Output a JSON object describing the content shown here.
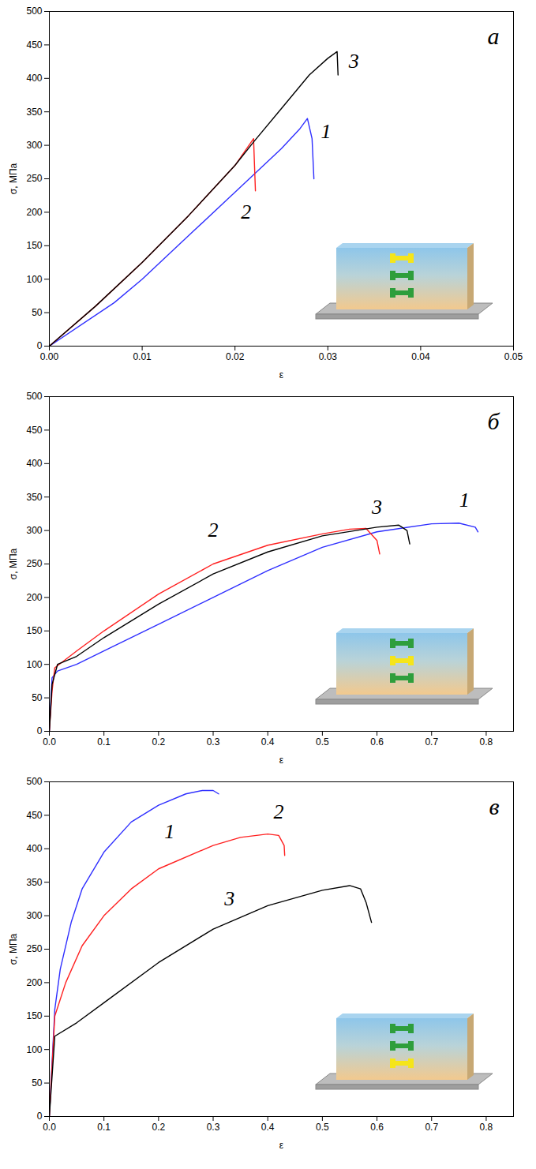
{
  "chart_data": [
    {
      "type": "line",
      "panel_label": "а",
      "x_label": "ε",
      "y_label": "σ, МПа",
      "xlim": [
        0,
        0.05
      ],
      "xticks": [
        {
          "value": 0,
          "label": "0.00"
        },
        {
          "value": 0.01,
          "label": "0.01"
        },
        {
          "value": 0.02,
          "label": "0.02"
        },
        {
          "value": 0.03,
          "label": "0.03"
        },
        {
          "value": 0.04,
          "label": "0.04"
        },
        {
          "value": 0.05,
          "label": "0.05"
        }
      ],
      "ylim": [
        0,
        500
      ],
      "yticks": [
        0,
        50,
        100,
        150,
        200,
        250,
        300,
        350,
        400,
        450,
        500
      ],
      "series": [
        {
          "name": "1",
          "color": "#2f2fff",
          "x": [
            0,
            0.007,
            0.01,
            0.015,
            0.02,
            0.025,
            0.027,
            0.0278,
            0.0283,
            0.0285
          ],
          "values": [
            0,
            65,
            100,
            165,
            230,
            295,
            325,
            340,
            310,
            250
          ]
        },
        {
          "name": "2",
          "color": "#ff2020",
          "x": [
            0,
            0.005,
            0.01,
            0.015,
            0.02,
            0.022,
            0.0221,
            0.0222
          ],
          "values": [
            0,
            60,
            125,
            195,
            270,
            310,
            270,
            232
          ]
        },
        {
          "name": "3",
          "color": "#000000",
          "x": [
            0,
            0.005,
            0.01,
            0.015,
            0.02,
            0.022,
            0.025,
            0.028,
            0.03,
            0.031,
            0.0311
          ],
          "values": [
            0,
            60,
            125,
            195,
            270,
            305,
            355,
            405,
            430,
            440,
            405
          ]
        }
      ],
      "annotations": [
        {
          "text": "1",
          "x": 0.0298,
          "y": 320
        },
        {
          "text": "2",
          "x": 0.0212,
          "y": 200
        },
        {
          "text": "3",
          "x": 0.0328,
          "y": 425
        }
      ]
    },
    {
      "type": "line",
      "panel_label": "б",
      "x_label": "ε",
      "y_label": "σ, МПа",
      "xlim": [
        0,
        0.85
      ],
      "xticks": [
        {
          "value": 0,
          "label": "0.0"
        },
        {
          "value": 0.1,
          "label": "0.1"
        },
        {
          "value": 0.2,
          "label": "0.2"
        },
        {
          "value": 0.3,
          "label": "0.3"
        },
        {
          "value": 0.4,
          "label": "0.4"
        },
        {
          "value": 0.5,
          "label": "0.5"
        },
        {
          "value": 0.6,
          "label": "0.6"
        },
        {
          "value": 0.7,
          "label": "0.7"
        },
        {
          "value": 0.8,
          "label": "0.8"
        }
      ],
      "ylim": [
        0,
        500
      ],
      "yticks": [
        0,
        50,
        100,
        150,
        200,
        250,
        300,
        350,
        400,
        450,
        500
      ],
      "series": [
        {
          "name": "1",
          "color": "#2f2fff",
          "x": [
            0,
            0.005,
            0.015,
            0.05,
            0.1,
            0.2,
            0.3,
            0.4,
            0.5,
            0.6,
            0.7,
            0.75,
            0.78,
            0.785
          ],
          "values": [
            0,
            80,
            90,
            100,
            120,
            160,
            200,
            240,
            275,
            298,
            310,
            311,
            305,
            298
          ]
        },
        {
          "name": "2",
          "color": "#ff2020",
          "x": [
            0,
            0.005,
            0.01,
            0.05,
            0.1,
            0.2,
            0.3,
            0.4,
            0.5,
            0.55,
            0.58,
            0.6,
            0.605
          ],
          "values": [
            0,
            60,
            95,
            120,
            150,
            205,
            250,
            278,
            295,
            302,
            303,
            285,
            265
          ]
        },
        {
          "name": "3",
          "color": "#000000",
          "x": [
            0,
            0.005,
            0.015,
            0.05,
            0.1,
            0.2,
            0.3,
            0.4,
            0.5,
            0.6,
            0.64,
            0.655,
            0.66
          ],
          "values": [
            0,
            70,
            100,
            112,
            140,
            190,
            235,
            268,
            292,
            305,
            308,
            300,
            280
          ]
        }
      ],
      "annotations": [
        {
          "text": "1",
          "x": 0.76,
          "y": 345
        },
        {
          "text": "2",
          "x": 0.3,
          "y": 300
        },
        {
          "text": "3",
          "x": 0.6,
          "y": 335
        }
      ]
    },
    {
      "type": "line",
      "panel_label": "в",
      "x_label": "ε",
      "y_label": "σ, МПа",
      "xlim": [
        0,
        0.85
      ],
      "xticks": [
        {
          "value": 0,
          "label": "0.0"
        },
        {
          "value": 0.1,
          "label": "0.1"
        },
        {
          "value": 0.2,
          "label": "0.2"
        },
        {
          "value": 0.3,
          "label": "0.3"
        },
        {
          "value": 0.4,
          "label": "0.4"
        },
        {
          "value": 0.5,
          "label": "0.5"
        },
        {
          "value": 0.6,
          "label": "0.6"
        },
        {
          "value": 0.7,
          "label": "0.7"
        },
        {
          "value": 0.8,
          "label": "0.8"
        }
      ],
      "ylim": [
        0,
        500
      ],
      "yticks": [
        0,
        50,
        100,
        150,
        200,
        250,
        300,
        350,
        400,
        450,
        500
      ],
      "series": [
        {
          "name": "1",
          "color": "#2f2fff",
          "x": [
            0,
            0.01,
            0.02,
            0.04,
            0.06,
            0.1,
            0.15,
            0.2,
            0.25,
            0.28,
            0.3,
            0.31
          ],
          "values": [
            0,
            160,
            220,
            290,
            340,
            395,
            440,
            465,
            482,
            487,
            487,
            482
          ]
        },
        {
          "name": "2",
          "color": "#ff2020",
          "x": [
            0,
            0.01,
            0.03,
            0.06,
            0.1,
            0.15,
            0.2,
            0.3,
            0.35,
            0.4,
            0.42,
            0.43,
            0.431
          ],
          "values": [
            0,
            150,
            200,
            255,
            300,
            340,
            370,
            405,
            417,
            422,
            420,
            405,
            390
          ]
        },
        {
          "name": "3",
          "color": "#000000",
          "x": [
            0,
            0.01,
            0.05,
            0.1,
            0.2,
            0.3,
            0.4,
            0.5,
            0.55,
            0.57,
            0.58,
            0.59
          ],
          "values": [
            0,
            120,
            140,
            170,
            230,
            280,
            315,
            338,
            345,
            340,
            320,
            290
          ]
        }
      ],
      "annotations": [
        {
          "text": "1",
          "x": 0.22,
          "y": 425
        },
        {
          "text": "2",
          "x": 0.42,
          "y": 455
        },
        {
          "text": "3",
          "x": 0.33,
          "y": 325
        }
      ]
    }
  ]
}
